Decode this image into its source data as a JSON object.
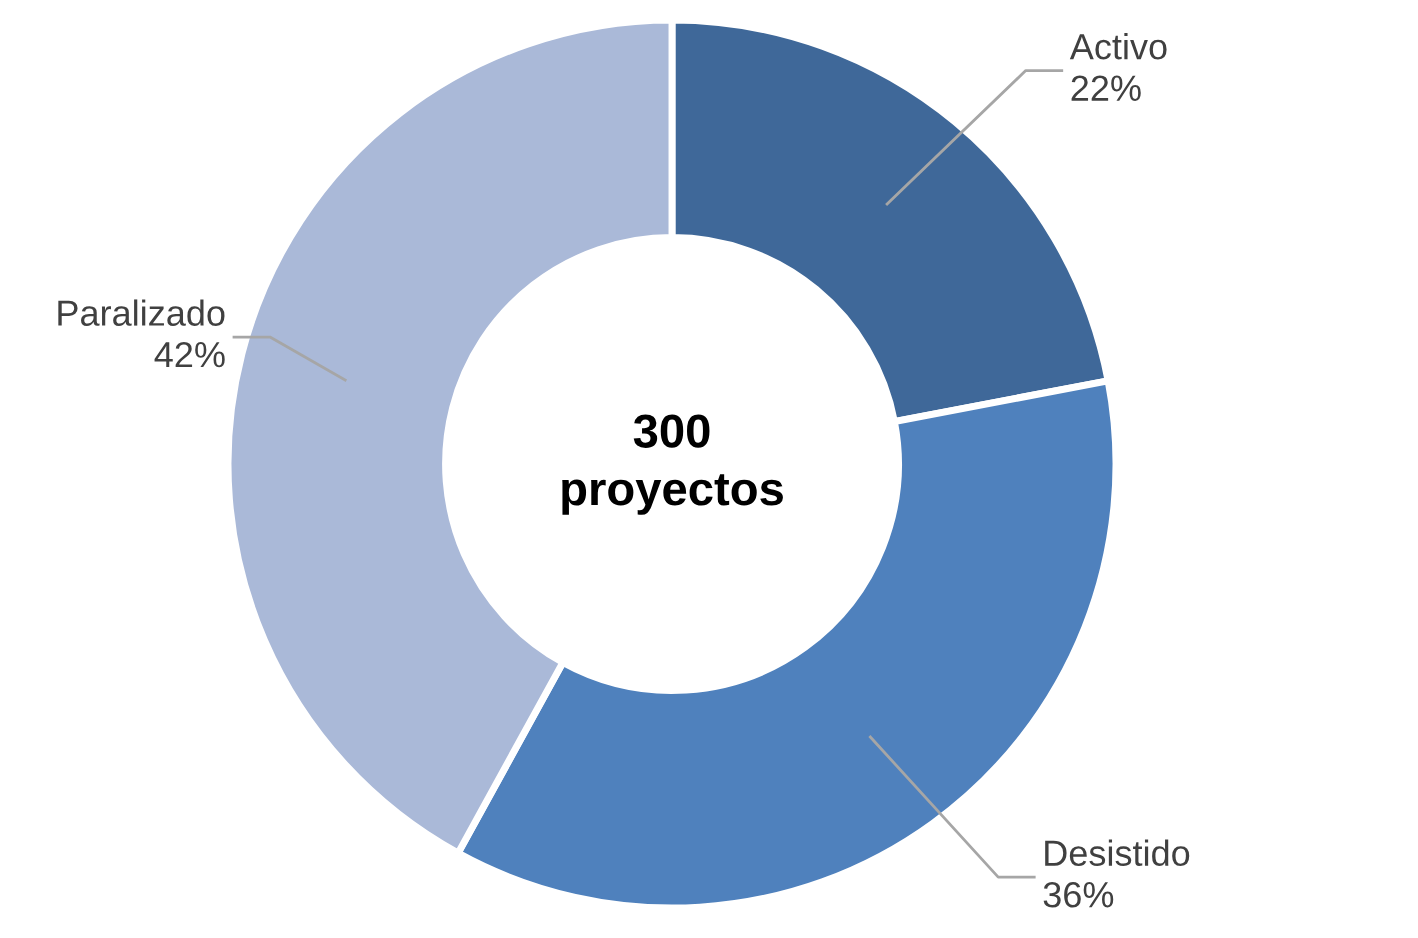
{
  "chart_data": {
    "type": "donut",
    "categories": [
      "Activo",
      "Desistido",
      "Paralizado"
    ],
    "values": [
      22,
      36,
      42
    ],
    "colors": [
      "#3f6899",
      "#4f81bd",
      "#aab9d8"
    ],
    "value_labels": [
      "22%",
      "36%",
      "42%"
    ],
    "annotations": [
      "300\nproyectos"
    ],
    "legend": false
  }
}
